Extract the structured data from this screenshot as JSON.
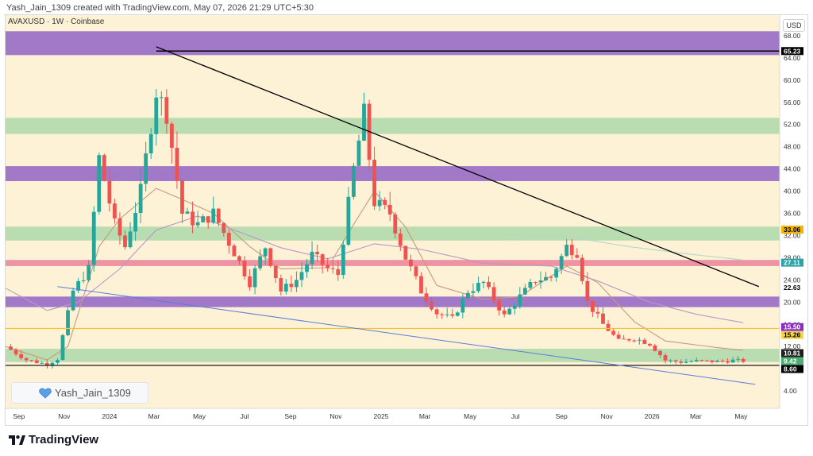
{
  "header": {
    "credit": "Yash_Jain_1309 created with TradingView.com, May 07, 2026 21:29 UTC+5:30"
  },
  "symbol": {
    "text": "AVAXUSD · 1W · Coinbase"
  },
  "currency": "USD",
  "watermark": {
    "text": "Yash_Jain_1309",
    "icon": "heart-icon"
  },
  "footer": {
    "brand": "TradingView",
    "icon": "tradingview-logo-icon"
  },
  "colors": {
    "background": "#fdf2d6",
    "up": "#26a69a",
    "down": "#ef5350",
    "purple_zone": "#9d72c8",
    "green_zone": "#b5dbae",
    "pink_zone": "#ec8da1",
    "trendline": "#000000",
    "support_line": "#5c7bd9",
    "yellow_line": "#f4c430"
  },
  "chart_data": {
    "type": "candlestick",
    "title": "",
    "y_axis": {
      "ticks": [
        68,
        64,
        60,
        56,
        52,
        48,
        44,
        40,
        36,
        32,
        28,
        24,
        20,
        16,
        12,
        4
      ],
      "tick_labels": [
        "68.00",
        "64.00",
        "60.00",
        "56.00",
        "52.00",
        "48.00",
        "44.00",
        "40.00",
        "36.00",
        "32.00",
        "28.00",
        "24.00",
        "20.00",
        "16.00",
        "12.00",
        "4.00"
      ],
      "range": [
        1.5,
        70
      ]
    },
    "x_axis": {
      "range": [
        "2023-08-14",
        "2026-06-22"
      ],
      "ticks": [
        {
          "date": "2023-09-01",
          "label": "Sep"
        },
        {
          "date": "2023-11-01",
          "label": "Nov"
        },
        {
          "date": "2024-01-01",
          "label": "2024"
        },
        {
          "date": "2024-03-01",
          "label": "Mar"
        },
        {
          "date": "2024-05-01",
          "label": "May"
        },
        {
          "date": "2024-07-01",
          "label": "Jul"
        },
        {
          "date": "2024-09-01",
          "label": "Sep"
        },
        {
          "date": "2024-11-01",
          "label": "Nov"
        },
        {
          "date": "2025-01-01",
          "label": "2025"
        },
        {
          "date": "2025-03-01",
          "label": "Mar"
        },
        {
          "date": "2025-05-01",
          "label": "May"
        },
        {
          "date": "2025-07-01",
          "label": "Jul"
        },
        {
          "date": "2025-09-01",
          "label": "Sep"
        },
        {
          "date": "2025-11-01",
          "label": "Nov"
        },
        {
          "date": "2026-01-01",
          "label": "2026"
        },
        {
          "date": "2026-03-01",
          "label": "Mar"
        },
        {
          "date": "2026-05-01",
          "label": "May"
        }
      ]
    },
    "anchors": [
      [
        "2023-08-14",
        12.0
      ],
      [
        "2023-09-11",
        9.6
      ],
      [
        "2023-10-09",
        8.8
      ],
      [
        "2023-10-23",
        9.8
      ],
      [
        "2023-11-13",
        22.0
      ],
      [
        "2023-12-04",
        26.0
      ],
      [
        "2023-12-18",
        46.0
      ],
      [
        "2024-01-08",
        34.0
      ],
      [
        "2024-01-22",
        30.0
      ],
      [
        "2024-02-12",
        40.0
      ],
      [
        "2024-03-04",
        58.0
      ],
      [
        "2024-03-18",
        54.0
      ],
      [
        "2024-04-08",
        36.0
      ],
      [
        "2024-04-29",
        34.0
      ],
      [
        "2024-05-20",
        36.0
      ],
      [
        "2024-06-17",
        29.0
      ],
      [
        "2024-07-08",
        23.5
      ],
      [
        "2024-07-29",
        30.0
      ],
      [
        "2024-08-19",
        22.0
      ],
      [
        "2024-09-09",
        24.0
      ],
      [
        "2024-09-30",
        28.5
      ],
      [
        "2024-10-21",
        26.0
      ],
      [
        "2024-11-04",
        25.0
      ],
      [
        "2024-11-25",
        44.0
      ],
      [
        "2024-12-09",
        54.0
      ],
      [
        "2024-12-23",
        38.0
      ],
      [
        "2025-01-13",
        36.0
      ],
      [
        "2025-02-03",
        28.0
      ],
      [
        "2025-02-24",
        22.0
      ],
      [
        "2025-03-17",
        18.0
      ],
      [
        "2025-04-07",
        17.0
      ],
      [
        "2025-04-28",
        22.0
      ],
      [
        "2025-05-19",
        23.5
      ],
      [
        "2025-06-16",
        17.5
      ],
      [
        "2025-07-07",
        21.0
      ],
      [
        "2025-07-28",
        24.0
      ],
      [
        "2025-08-18",
        24.5
      ],
      [
        "2025-09-08",
        30.0
      ],
      [
        "2025-09-22",
        29.0
      ],
      [
        "2025-10-06",
        20.0
      ],
      [
        "2025-10-27",
        16.0
      ],
      [
        "2025-11-17",
        13.0
      ],
      [
        "2025-12-08",
        13.5
      ],
      [
        "2025-12-29",
        12.5
      ],
      [
        "2026-01-19",
        9.5
      ],
      [
        "2026-02-09",
        9.2
      ],
      [
        "2026-03-02",
        9.4
      ],
      [
        "2026-03-30",
        9.3
      ],
      [
        "2026-04-20",
        9.5
      ],
      [
        "2026-05-04",
        9.42
      ]
    ],
    "zones": [
      {
        "name": "purple-zone-top",
        "from": 64.5,
        "to": 68.8,
        "color": "#9d72c8"
      },
      {
        "name": "green-zone-52",
        "from": 50.3,
        "to": 53.2,
        "color": "#b5dbae"
      },
      {
        "name": "purple-zone-44",
        "from": 41.8,
        "to": 44.5,
        "color": "#9d72c8"
      },
      {
        "name": "green-zone-32",
        "from": 31.1,
        "to": 33.6,
        "color": "#b5dbae"
      },
      {
        "name": "pink-zone-27",
        "from": 26.5,
        "to": 27.6,
        "color": "#ec8da1"
      },
      {
        "name": "purple-zone-20",
        "from": 19.1,
        "to": 21.0,
        "color": "#9d72c8"
      },
      {
        "name": "green-zone-10",
        "from": 9.2,
        "to": 11.6,
        "color": "#b5dbae"
      }
    ],
    "lines": [
      {
        "name": "resistance-65",
        "x1": "2024-03-04",
        "y1": 65.23,
        "x2": "2026-06-22",
        "y2": 65.23,
        "color": "#000000",
        "width": 1.6
      },
      {
        "name": "descending-trendline",
        "x1": "2024-03-04",
        "y1": 66.0,
        "x2": "2026-05-25",
        "y2": 22.8,
        "color": "#000000",
        "width": 1.3
      },
      {
        "name": "support-8-60",
        "x1": "2023-08-14",
        "y1": 8.6,
        "x2": "2026-06-22",
        "y2": 8.6,
        "color": "#000000",
        "width": 1.2
      },
      {
        "name": "yellow-15-26",
        "x1": "2023-08-14",
        "y1": 15.26,
        "x2": "2026-06-22",
        "y2": 15.26,
        "color": "#f4c430",
        "width": 1.2
      },
      {
        "name": "blue-support",
        "x1": "2023-10-23",
        "y1": 22.8,
        "x2": "2026-05-20",
        "y2": 5.2,
        "color": "#5c7bd9",
        "width": 1.0
      }
    ],
    "ma_lines": [
      {
        "name": "ma-fast",
        "color": "#c79a7a",
        "points": [
          [
            "2023-08-14",
            12.0
          ],
          [
            "2023-10-09",
            9.6
          ],
          [
            "2023-11-06",
            12.0
          ],
          [
            "2023-12-18",
            30.0
          ],
          [
            "2024-01-15",
            35.0
          ],
          [
            "2024-03-04",
            40.5
          ],
          [
            "2024-04-08",
            38.5
          ],
          [
            "2024-05-20",
            36.0
          ],
          [
            "2024-07-08",
            30.0
          ],
          [
            "2024-08-19",
            26.0
          ],
          [
            "2024-10-21",
            26.2
          ],
          [
            "2024-11-25",
            34.0
          ],
          [
            "2024-12-23",
            40.0
          ],
          [
            "2025-02-03",
            33.5
          ],
          [
            "2025-03-17",
            23.0
          ],
          [
            "2025-05-19",
            20.5
          ],
          [
            "2025-07-07",
            21.0
          ],
          [
            "2025-09-08",
            26.5
          ],
          [
            "2025-10-20",
            23.5
          ],
          [
            "2025-12-08",
            16.5
          ],
          [
            "2026-01-19",
            13.0
          ],
          [
            "2026-03-30",
            11.8
          ],
          [
            "2026-05-04",
            11.3
          ]
        ]
      },
      {
        "name": "ma-slow",
        "color": "#b799c5",
        "points": [
          [
            "2023-08-14",
            22.5
          ],
          [
            "2023-10-09",
            18.5
          ],
          [
            "2023-11-20",
            20.0
          ],
          [
            "2024-01-15",
            26.0
          ],
          [
            "2024-03-04",
            33.0
          ],
          [
            "2024-04-29",
            35.5
          ],
          [
            "2024-06-17",
            33.0
          ],
          [
            "2024-08-19",
            29.8
          ],
          [
            "2024-10-21",
            27.8
          ],
          [
            "2024-12-23",
            30.5
          ],
          [
            "2025-02-24",
            29.5
          ],
          [
            "2025-05-19",
            27.0
          ],
          [
            "2025-08-18",
            26.5
          ],
          [
            "2025-10-20",
            23.8
          ],
          [
            "2025-12-29",
            20.0
          ],
          [
            "2026-03-02",
            17.8
          ],
          [
            "2026-05-04",
            16.3
          ]
        ]
      },
      {
        "name": "ma-long",
        "color": "#b2d8c9",
        "points": [
          [
            "2025-06-16",
            32.0
          ],
          [
            "2025-09-08",
            31.8
          ],
          [
            "2025-12-01",
            30.0
          ],
          [
            "2026-02-23",
            28.6
          ],
          [
            "2026-05-04",
            27.6
          ]
        ]
      }
    ],
    "price_labels": [
      {
        "value": 65.23,
        "text": "65.23",
        "bg": "#000000",
        "fg": "#ffffff"
      },
      {
        "value": 33.06,
        "text": "33.06",
        "bg": "#f4b400",
        "fg": "#000000"
      },
      {
        "value": 27.11,
        "text": "27.11",
        "bg": "#2ca2a6",
        "fg": "#ffffff"
      },
      {
        "value": 22.63,
        "text": "22.63",
        "bg": "#ffffff",
        "fg": "#000000"
      },
      {
        "value": 15.5,
        "text": "15.50",
        "bg": "#8e2bc2",
        "fg": "#ffffff"
      },
      {
        "value": 15.26,
        "text": "15.26",
        "bg": "#f6d44a",
        "fg": "#000000"
      },
      {
        "value": 10.81,
        "text": "10.81",
        "bg": "#1d1d1d",
        "fg": "#ffffff"
      },
      {
        "value": 9.42,
        "text": "9.42",
        "bg": "#4cae73",
        "fg": "#ffffff"
      },
      {
        "value": 8.6,
        "text": "8.60",
        "bg": "#000000",
        "fg": "#ffffff"
      }
    ]
  }
}
